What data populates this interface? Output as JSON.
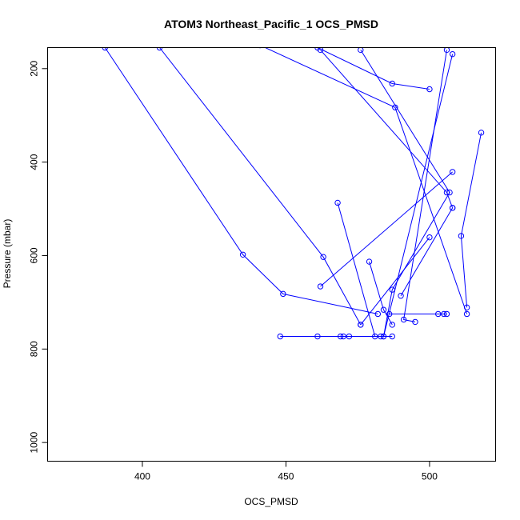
{
  "chart_data": {
    "type": "line",
    "title": "ATOM3 Northeast_Pacific_1 OCS_PMSD",
    "xlabel": "OCS_PMSD",
    "ylabel": "Pressure (mbar)",
    "xlim": [
      367,
      523
    ],
    "ylim": [
      1040,
      155
    ],
    "y_inverted": true,
    "x_ticks": [
      400,
      450,
      500
    ],
    "y_ticks": [
      200,
      400,
      600,
      800,
      1000
    ],
    "marker": "open-circle",
    "color": "#0000ff",
    "series": [
      {
        "values": [
          [
            387,
            155
          ],
          [
            435,
            598
          ],
          [
            449,
            682
          ],
          [
            482,
            725
          ]
        ]
      },
      {
        "values": [
          [
            406,
            155
          ],
          [
            463,
            603
          ],
          [
            476,
            748
          ]
        ]
      },
      {
        "values": [
          [
            461,
            155
          ],
          [
            487,
            232
          ],
          [
            500,
            244
          ]
        ]
      },
      {
        "values": [
          [
            441,
            150
          ],
          [
            488,
            283
          ],
          [
            513,
            725
          ]
        ]
      },
      {
        "values": [
          [
            462,
            160
          ],
          [
            506,
            465
          ],
          [
            508,
            498
          ]
        ]
      },
      {
        "values": [
          [
            476,
            160
          ],
          [
            507,
            465
          ],
          [
            487,
            673
          ],
          [
            484,
            773
          ],
          [
            470,
            773
          ]
        ]
      },
      {
        "values": [
          [
            506,
            160
          ],
          [
            491,
            737
          ],
          [
            495,
            742
          ]
        ]
      },
      {
        "values": [
          [
            508,
            169
          ],
          [
            484,
            773
          ],
          [
            448,
            773
          ]
        ]
      },
      {
        "values": [
          [
            518,
            337
          ],
          [
            511,
            558
          ],
          [
            513,
            711
          ]
        ]
      },
      {
        "values": [
          [
            468,
            487
          ],
          [
            481,
            773
          ]
        ]
      },
      {
        "values": [
          [
            508,
            421
          ],
          [
            462,
            666
          ]
        ]
      },
      {
        "values": [
          [
            500,
            561
          ],
          [
            476,
            748
          ]
        ]
      },
      {
        "values": [
          [
            508,
            498
          ],
          [
            490,
            686
          ]
        ]
      },
      {
        "values": [
          [
            479,
            613
          ],
          [
            484,
            716
          ],
          [
            487,
            748
          ]
        ]
      },
      {
        "values": [
          [
            486,
            725
          ],
          [
            503,
            725
          ],
          [
            505,
            725
          ],
          [
            506,
            725
          ]
        ]
      },
      {
        "values": [
          [
            461,
            773
          ],
          [
            472,
            773
          ],
          [
            487,
            773
          ]
        ]
      },
      {
        "values": [
          [
            469,
            773
          ],
          [
            483,
            773
          ]
        ]
      }
    ]
  }
}
